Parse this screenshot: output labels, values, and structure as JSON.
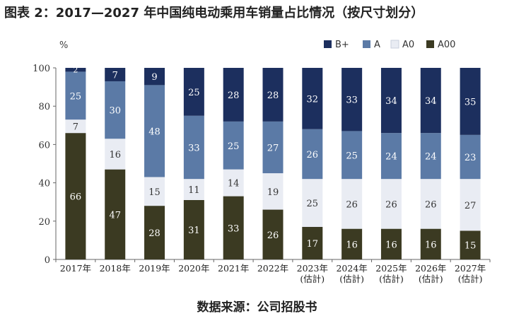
{
  "title": "图表 2：2017—2027 年中国纯电动乘用车销量占比情况（按尺寸划分）",
  "source": "数据来源：公司招股书",
  "chart_data": {
    "type": "bar",
    "stacked": true,
    "ylabel": "%",
    "ylim": [
      0,
      100
    ],
    "yticks": [
      0,
      20,
      40,
      60,
      80,
      100
    ],
    "categories": [
      [
        "2017年"
      ],
      [
        "2018年"
      ],
      [
        "2019年"
      ],
      [
        "2020年"
      ],
      [
        "2021年"
      ],
      [
        "2022年"
      ],
      [
        "2023年",
        "(估計)"
      ],
      [
        "2024年",
        "(估計)"
      ],
      [
        "2025年",
        "(估計)"
      ],
      [
        "2026年",
        "(估計)"
      ],
      [
        "2027年",
        "(估計)"
      ]
    ],
    "series": [
      {
        "name": "A00",
        "color": "#3b3a22",
        "label_color": "#ffffff",
        "values": [
          66,
          47,
          28,
          31,
          33,
          26,
          17,
          16,
          16,
          16,
          15
        ]
      },
      {
        "name": "A0",
        "color": "#e9ecf3",
        "label_color": "#333333",
        "values": [
          7,
          16,
          15,
          11,
          14,
          19,
          25,
          26,
          26,
          26,
          27
        ]
      },
      {
        "name": "A",
        "color": "#5b7aa6",
        "label_color": "#ffffff",
        "values": [
          25,
          30,
          48,
          33,
          25,
          27,
          26,
          25,
          24,
          24,
          23
        ]
      },
      {
        "name": "B+",
        "color": "#1c2f5e",
        "label_color": "#ffffff",
        "values": [
          2,
          7,
          9,
          25,
          28,
          28,
          32,
          33,
          34,
          34,
          35
        ]
      }
    ],
    "legend_position": "top-right",
    "legend_order": [
      "B+",
      "A",
      "A0",
      "A00"
    ],
    "grid": false
  }
}
